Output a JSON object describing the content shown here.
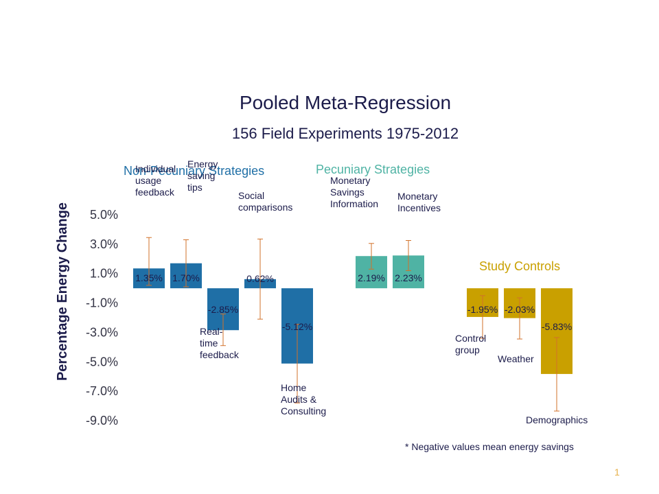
{
  "chart_data": {
    "type": "bar",
    "title": "Pooled Meta-Regression",
    "subtitle": "156 Field Experiments 1975-2012",
    "ylabel": "Percentage Energy Change",
    "ylim": [
      -9.0,
      5.0
    ],
    "yticks": [
      "5.0%",
      "3.0%",
      "1.0%",
      "-1.0%",
      "-3.0%",
      "-5.0%",
      "-7.0%",
      "-9.0%"
    ],
    "ytick_values": [
      5,
      3,
      1,
      -1,
      -3,
      -5,
      -7,
      -9
    ],
    "groups": [
      {
        "name": "Non-Pecuniary Strategies",
        "color": "#1f6fa6"
      },
      {
        "name": "Pecuniary Strategies",
        "color": "#4fb3a4"
      },
      {
        "name": "Study Controls",
        "color": "#c9a000"
      }
    ],
    "bars": [
      {
        "category": [
          "Individual",
          "usage",
          "feedback"
        ],
        "value": 1.35,
        "value_label": "1.35%",
        "error_low": 0.2,
        "error_high": 3.45,
        "group": 0,
        "slot": 0
      },
      {
        "category": [
          "Energy",
          "saving",
          "tips"
        ],
        "value": 1.7,
        "value_label": "1.70%",
        "error_low": 0.1,
        "error_high": 3.3,
        "group": 0,
        "slot": 1
      },
      {
        "category": [
          "Real-",
          "time",
          "feedback"
        ],
        "value": -2.85,
        "value_label": "-2.85%",
        "error_low": -3.9,
        "error_high": -1.75,
        "group": 0,
        "slot": 2
      },
      {
        "category": [
          "Social",
          "comparisons"
        ],
        "value": 0.62,
        "value_label": "0.62%",
        "error_low": -2.1,
        "error_high": 3.35,
        "group": 0,
        "slot": 3
      },
      {
        "category": [
          "Home",
          "Audits &",
          "Consulting"
        ],
        "value": -5.12,
        "value_label": "-5.12%",
        "error_low": -7.8,
        "error_high": -2.45,
        "group": 0,
        "slot": 4
      },
      {
        "category": [
          "Monetary",
          "Savings",
          "Information"
        ],
        "value": 2.19,
        "value_label": "2.19%",
        "error_low": 1.3,
        "error_high": 3.05,
        "group": 1,
        "slot": 6
      },
      {
        "category": [
          "Monetary",
          "Incentives"
        ],
        "value": 2.23,
        "value_label": "2.23%",
        "error_low": 1.2,
        "error_high": 3.25,
        "group": 1,
        "slot": 7
      },
      {
        "category": [
          "Control",
          "group"
        ],
        "value": -1.95,
        "value_label": "-1.95%",
        "error_low": -3.4,
        "error_high": -0.5,
        "group": 2,
        "slot": 9
      },
      {
        "category": [
          "Weather"
        ],
        "value": -2.03,
        "value_label": "-2.03%",
        "error_low": -3.45,
        "error_high": -0.65,
        "group": 2,
        "slot": 10
      },
      {
        "category": [
          "Demographics"
        ],
        "value": -5.83,
        "value_label": "-5.83%",
        "error_low": -8.35,
        "error_high": -3.35,
        "group": 2,
        "slot": 11
      }
    ],
    "error_bar_color": "#d2722a",
    "footnote": "* Negative values mean energy savings",
    "page_number": "1"
  }
}
